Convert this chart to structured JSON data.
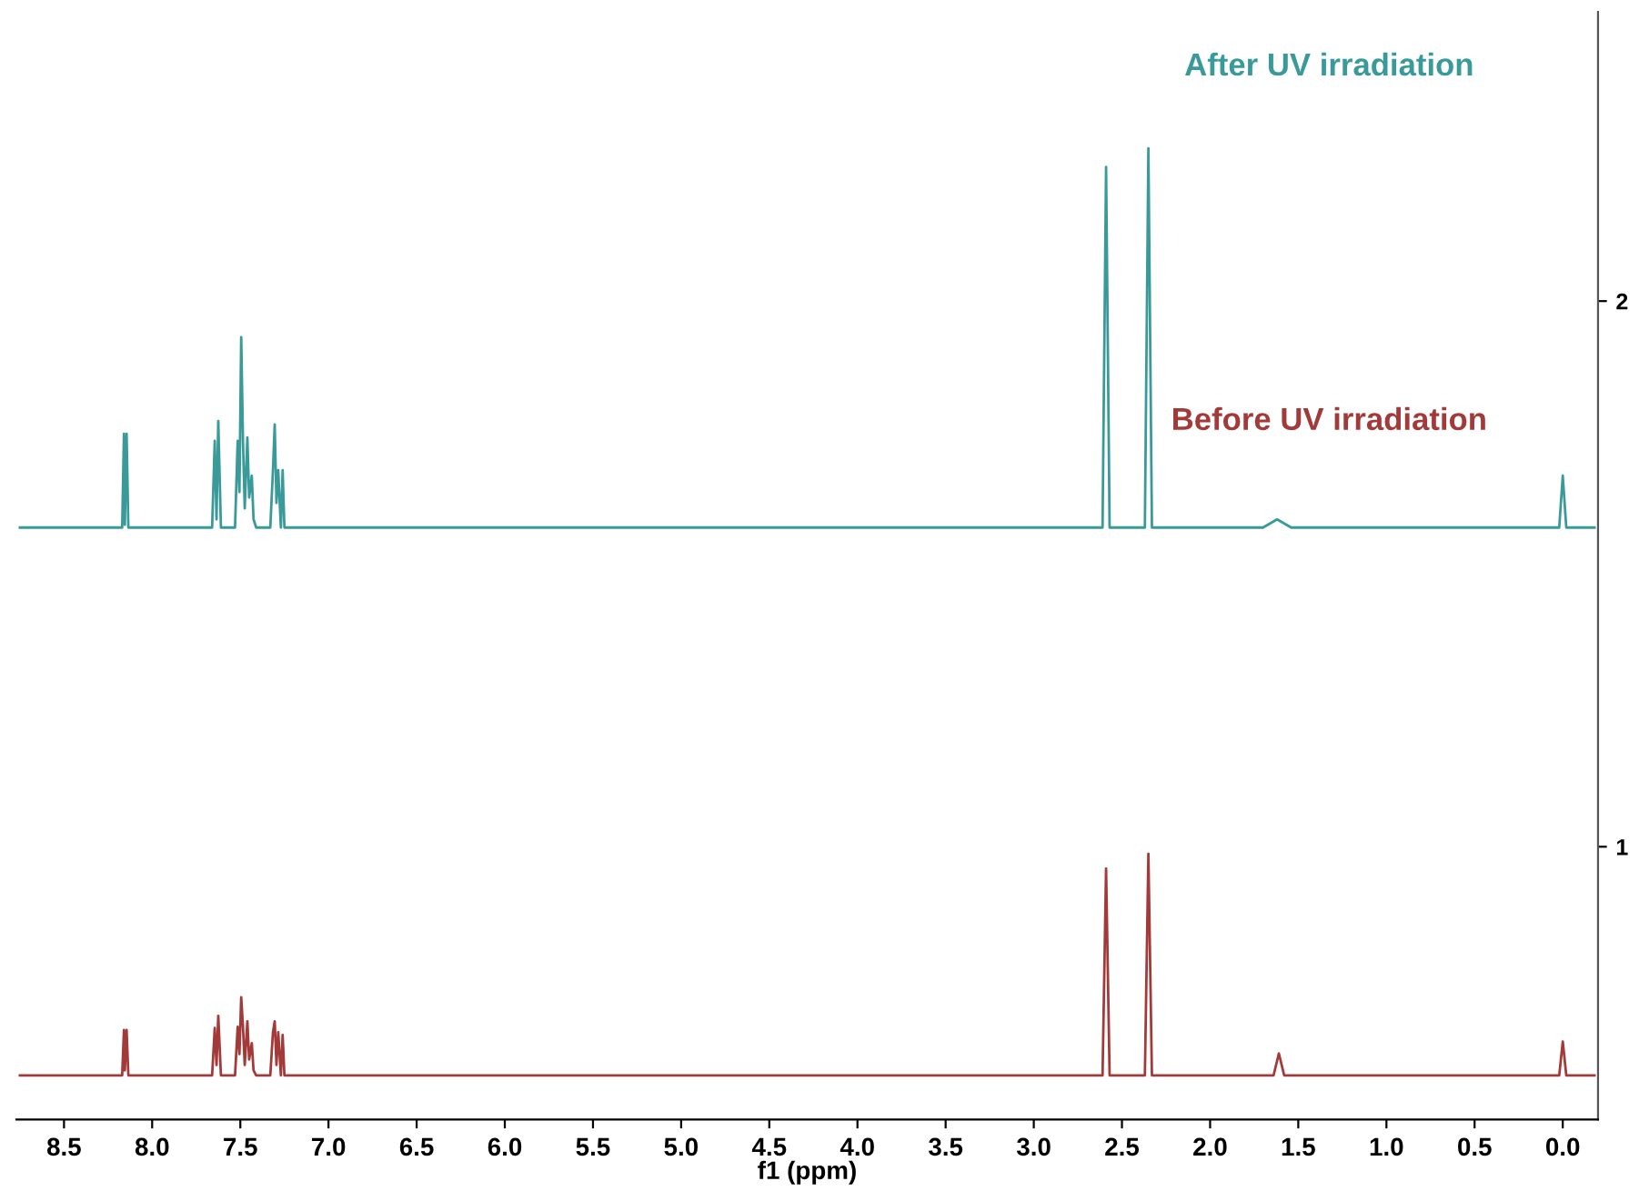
{
  "chart_data": {
    "type": "line",
    "xlabel": "f1 (ppm)",
    "xlim": [
      8.77,
      -0.2
    ],
    "xticks": [
      {
        "value": 8.5,
        "label": "8.5"
      },
      {
        "value": 8.0,
        "label": "8.0"
      },
      {
        "value": 7.5,
        "label": "7.5"
      },
      {
        "value": 7.0,
        "label": "7.0"
      },
      {
        "value": 6.5,
        "label": "6.5"
      },
      {
        "value": 6.0,
        "label": "6.0"
      },
      {
        "value": 5.5,
        "label": "5.5"
      },
      {
        "value": 5.0,
        "label": "5.0"
      },
      {
        "value": 4.5,
        "label": "4.5"
      },
      {
        "value": 4.0,
        "label": "4.0"
      },
      {
        "value": 3.5,
        "label": "3.5"
      },
      {
        "value": 3.0,
        "label": "3.0"
      },
      {
        "value": 2.5,
        "label": "2.5"
      },
      {
        "value": 2.0,
        "label": "2.0"
      },
      {
        "value": 1.5,
        "label": "1.5"
      },
      {
        "value": 1.0,
        "label": "1.0"
      },
      {
        "value": 0.5,
        "label": "0.5"
      },
      {
        "value": 0.0,
        "label": "0.0"
      }
    ],
    "ylim": [
      0.5,
      2.53
    ],
    "yticks": [
      1,
      2
    ],
    "grid": false,
    "legend": false,
    "marker": "none",
    "line_style": "solid",
    "series": [
      {
        "name": "After UV irradiation",
        "color": "#3a9a9a",
        "x": [
          8.75,
          8.17,
          8.16,
          8.155,
          8.145,
          8.135,
          7.66,
          7.645,
          7.635,
          7.625,
          7.61,
          7.53,
          7.515,
          7.505,
          7.495,
          7.485,
          7.475,
          7.46,
          7.45,
          7.435,
          7.425,
          7.41,
          7.33,
          7.315,
          7.305,
          7.295,
          7.285,
          7.27,
          7.26,
          7.25,
          2.61,
          2.59,
          2.57,
          2.37,
          2.35,
          2.33,
          1.7,
          1.62,
          1.54,
          0.02,
          0.0,
          -0.02,
          -0.18
        ],
        "values": [
          1.585,
          1.585,
          1.757,
          1.59,
          1.757,
          1.585,
          1.585,
          1.744,
          1.6,
          1.78,
          1.585,
          1.585,
          1.744,
          1.65,
          1.934,
          1.744,
          1.62,
          1.75,
          1.64,
          1.68,
          1.6,
          1.585,
          1.585,
          1.69,
          1.774,
          1.63,
          1.69,
          1.585,
          1.69,
          1.585,
          1.585,
          2.246,
          1.585,
          1.585,
          2.28,
          1.585,
          1.585,
          1.6,
          1.585,
          1.585,
          1.68,
          1.585,
          1.585
        ]
      },
      {
        "name": "Before UV irradiation",
        "color": "#a33a3a",
        "x": [
          8.75,
          8.17,
          8.16,
          8.155,
          8.145,
          8.135,
          7.66,
          7.645,
          7.635,
          7.625,
          7.61,
          7.53,
          7.515,
          7.505,
          7.495,
          7.485,
          7.475,
          7.46,
          7.45,
          7.435,
          7.425,
          7.41,
          7.33,
          7.315,
          7.305,
          7.295,
          7.285,
          7.27,
          7.26,
          7.25,
          2.61,
          2.59,
          2.57,
          2.37,
          2.35,
          2.33,
          1.64,
          1.61,
          1.58,
          0.02,
          0.0,
          -0.02,
          -0.18
        ],
        "values": [
          0.581,
          0.581,
          0.664,
          0.59,
          0.664,
          0.581,
          0.581,
          0.668,
          0.6,
          0.69,
          0.581,
          0.581,
          0.67,
          0.62,
          0.724,
          0.67,
          0.6,
          0.68,
          0.61,
          0.64,
          0.59,
          0.581,
          0.581,
          0.66,
          0.68,
          0.6,
          0.66,
          0.581,
          0.655,
          0.581,
          0.581,
          0.96,
          0.581,
          0.581,
          0.987,
          0.581,
          0.581,
          0.621,
          0.581,
          0.581,
          0.643,
          0.581,
          0.581
        ]
      }
    ]
  }
}
